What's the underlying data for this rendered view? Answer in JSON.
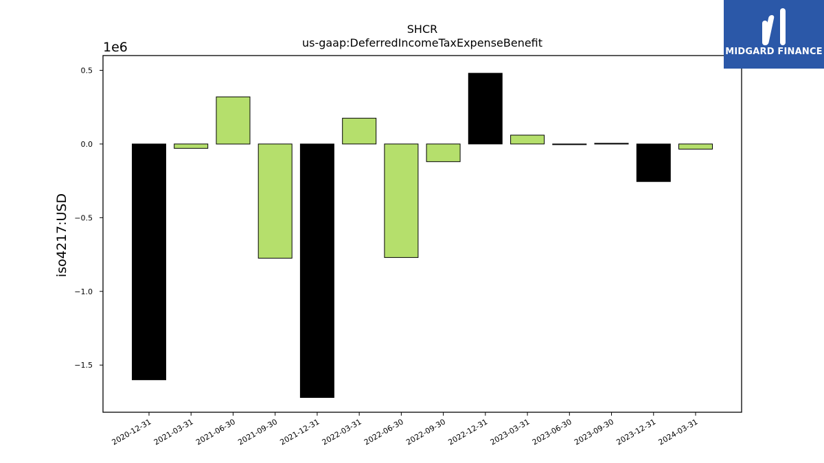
{
  "chart_data": {
    "type": "bar",
    "title": "SHCR",
    "subtitle": "us-gaap:DeferredIncomeTaxExpenseBenefit",
    "ylabel": "iso4217:USD",
    "xlabel": "",
    "y_scale_label": "1e6",
    "ylim": [
      -1.82,
      0.6
    ],
    "yticks": [
      0.5,
      0.0,
      -0.5,
      -1.0,
      -1.5
    ],
    "ytick_labels": [
      "0.5",
      "0.0",
      "−0.5",
      "−1.0",
      "−1.5"
    ],
    "grid": false,
    "categories": [
      "2020-12-31",
      "2021-03-31",
      "2021-06-30",
      "2021-09-30",
      "2021-12-31",
      "2022-03-31",
      "2022-06-30",
      "2022-09-30",
      "2022-12-31",
      "2023-03-31",
      "2023-06-30",
      "2023-09-30",
      "2023-12-31",
      "2024-03-31"
    ],
    "values": [
      -1.6,
      -0.03,
      0.32,
      -0.775,
      -1.72,
      0.175,
      -0.77,
      -0.12,
      0.48,
      0.06,
      -0.002,
      0.005,
      -0.255,
      -0.035
    ],
    "bar_colors": [
      "#000000",
      "#b5df6c",
      "#b5df6c",
      "#b5df6c",
      "#000000",
      "#b5df6c",
      "#b5df6c",
      "#b5df6c",
      "#000000",
      "#b5df6c",
      "#000000",
      "#000000",
      "#000000",
      "#b5df6c"
    ]
  },
  "logo": {
    "text": "MIDGARD FINANCE",
    "background": "#2b58a8"
  }
}
